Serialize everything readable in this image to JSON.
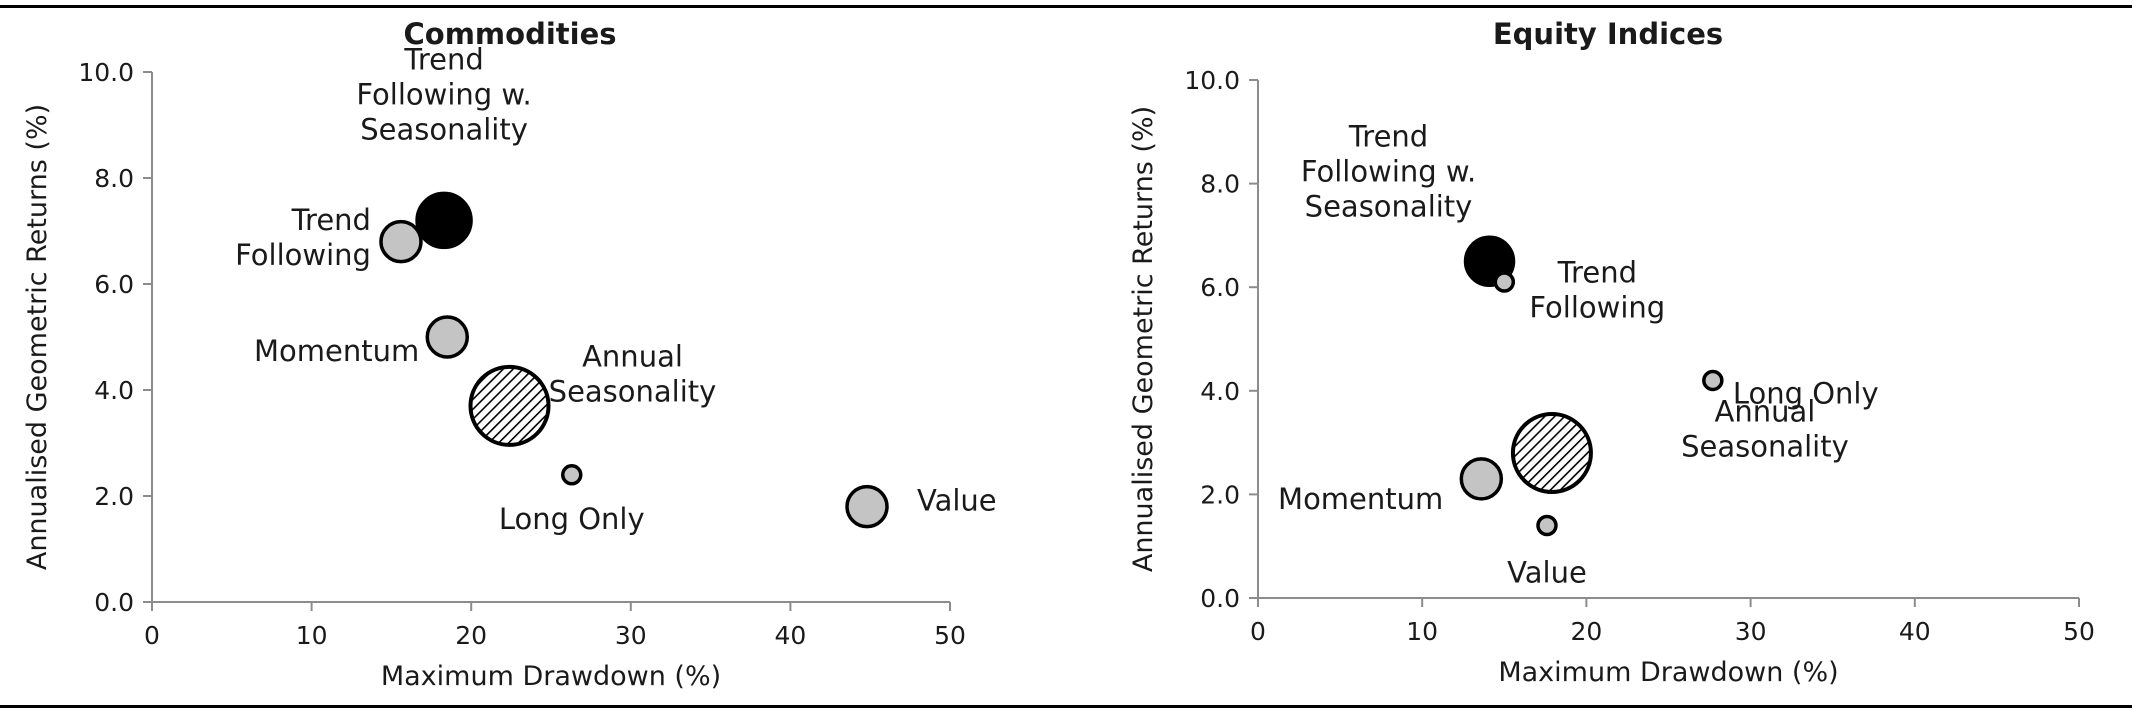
{
  "chart_data": [
    {
      "type": "scatter",
      "title": "Commodities",
      "xlabel": "Maximum Drawdown (%)",
      "ylabel": "Annualised Geometric Returns (%)",
      "xlim": [
        0,
        50
      ],
      "ylim": [
        0,
        10
      ],
      "xticks": [
        "0",
        "10",
        "20",
        "30",
        "40",
        "50"
      ],
      "yticks": [
        "0.0",
        "2.0",
        "4.0",
        "6.0",
        "8.0",
        "10.0"
      ],
      "grid": false,
      "legend": "none",
      "points": [
        {
          "label": [
            "Trend",
            "Following w.",
            "Seasonality"
          ],
          "x": 18.3,
          "y": 7.2,
          "size": "large",
          "fill": "black"
        },
        {
          "label": [
            "Trend",
            "Following"
          ],
          "x": 15.6,
          "y": 6.8,
          "size": "small",
          "fill": "gray"
        },
        {
          "label": [
            "Momentum"
          ],
          "x": 18.5,
          "y": 5.0,
          "size": "small",
          "fill": "gray"
        },
        {
          "label": [
            "Annual",
            "Seasonality"
          ],
          "x": 22.4,
          "y": 3.7,
          "size": "xlarge",
          "fill": "hatched"
        },
        {
          "label": [
            "Long Only"
          ],
          "x": 26.3,
          "y": 2.4,
          "size": "tiny",
          "fill": "gray"
        },
        {
          "label": [
            "Value"
          ],
          "x": 44.8,
          "y": 1.8,
          "size": "small",
          "fill": "gray"
        }
      ]
    },
    {
      "type": "scatter",
      "title": "Equity Indices",
      "xlabel": "Maximum Drawdown (%)",
      "ylabel": "Annualised Geometric Returns (%)",
      "xlim": [
        0,
        50
      ],
      "ylim": [
        0,
        10
      ],
      "xticks": [
        "0",
        "10",
        "20",
        "30",
        "40",
        "50"
      ],
      "yticks": [
        "0.0",
        "2.0",
        "4.0",
        "6.0",
        "8.0",
        "10.0"
      ],
      "grid": false,
      "legend": "none",
      "points": [
        {
          "label": [
            "Trend",
            "Following w.",
            "Seasonality"
          ],
          "x": 14.1,
          "y": 6.5,
          "size": "medium",
          "fill": "black"
        },
        {
          "label": [
            "Trend",
            "Following"
          ],
          "x": 15.0,
          "y": 6.1,
          "size": "tiny",
          "fill": "gray"
        },
        {
          "label": [
            "Long Only"
          ],
          "x": 27.7,
          "y": 4.2,
          "size": "tiny",
          "fill": "gray"
        },
        {
          "label": [
            "Annual",
            "Seasonality"
          ],
          "x": 17.9,
          "y": 2.8,
          "size": "xlarge",
          "fill": "hatched"
        },
        {
          "label": [
            "Momentum"
          ],
          "x": 13.6,
          "y": 2.3,
          "size": "small",
          "fill": "gray"
        },
        {
          "label": [
            "Value"
          ],
          "x": 17.6,
          "y": 1.4,
          "size": "tiny",
          "fill": "gray"
        }
      ]
    }
  ],
  "colors": {
    "point_gray": "#c4c4c4",
    "point_black": "#000000",
    "axis": "#8c8c8c",
    "rule": "#000000"
  }
}
